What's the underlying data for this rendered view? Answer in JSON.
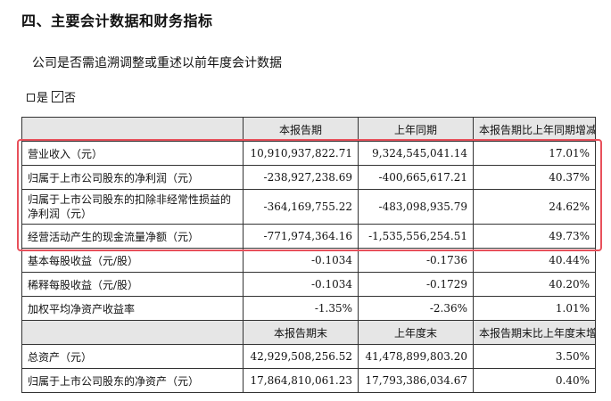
{
  "heading": "四、主要会计数据和财务指标",
  "subtitle": "公司是否需追溯调整或重述以前年度会计数据",
  "choice": {
    "yes": "是",
    "no": "否",
    "checked_mark": "☑"
  },
  "table": {
    "header1": [
      "",
      "本报告期",
      "上年同期",
      "本报告期比上年同期增减"
    ],
    "rows1": [
      [
        "营业收入（元）",
        "10,910,937,822.71",
        "9,324,545,041.14",
        "17.01%"
      ],
      [
        "归属于上市公司股东的净利润（元）",
        "-238,927,238.69",
        "-400,665,617.21",
        "40.37%"
      ],
      [
        "归属于上市公司股东的扣除非经常性损益的净利润（元）",
        "-364,169,755.22",
        "-483,098,935.79",
        "24.62%"
      ],
      [
        "经营活动产生的现金流量净额（元）",
        "-771,974,364.16",
        "-1,535,556,254.51",
        "49.73%"
      ],
      [
        "基本每股收益（元/股）",
        "-0.1034",
        "-0.1736",
        "40.44%"
      ],
      [
        "稀释每股收益（元/股）",
        "-0.1034",
        "-0.1729",
        "40.20%"
      ],
      [
        "加权平均净资产收益率",
        "-1.35%",
        "-2.36%",
        "1.01%"
      ]
    ],
    "header2": [
      "",
      "本报告期末",
      "上年度末",
      "本报告期末比上年度末增减"
    ],
    "rows2": [
      [
        "总资产（元）",
        "42,929,508,256.52",
        "41,478,899,803.20",
        "3.50%"
      ],
      [
        "归属于上市公司股东的净资产（元）",
        "17,864,810,061.23",
        "17,793,386,034.67",
        "0.40%"
      ]
    ]
  },
  "highlight_color": "#e8505b"
}
